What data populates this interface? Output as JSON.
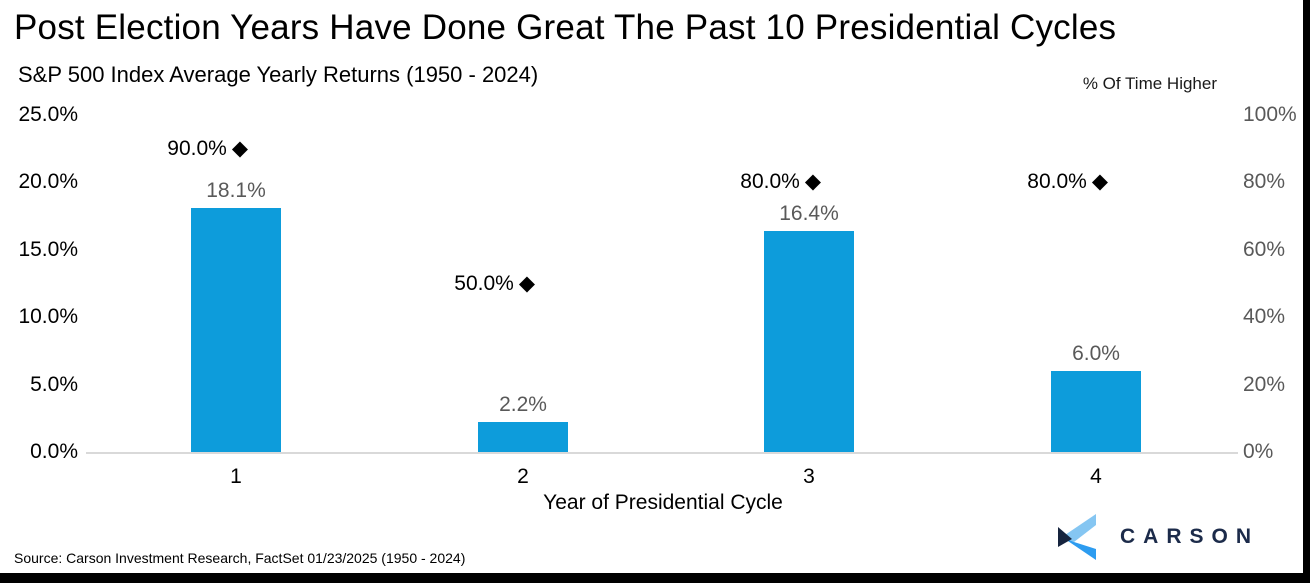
{
  "chart_data": {
    "type": "bar",
    "title": "Post Election Years Have Done Great The Past 10 Presidential Cycles",
    "subtitle": "S&P 500 Index Average Yearly Returns (1950 - 2024)",
    "xlabel": "Year of Presidential Cycle",
    "categories": [
      "1",
      "2",
      "3",
      "4"
    ],
    "series": [
      {
        "name": "S&P 500 Index Average Yearly Returns",
        "type": "bar",
        "axis": "left",
        "color": "#0d9cdb",
        "values": [
          18.1,
          2.2,
          16.4,
          6.0
        ],
        "labels": [
          "18.1%",
          "2.2%",
          "16.4%",
          "6.0%"
        ]
      },
      {
        "name": "% Of Time Higher",
        "type": "scatter-diamond",
        "axis": "right",
        "color": "#000000",
        "marker": "diamond-icon",
        "values": [
          90.0,
          50.0,
          80.0,
          80.0
        ],
        "labels": [
          "90.0%",
          "50.0%",
          "80.0%",
          "80.0%"
        ]
      }
    ],
    "left_axis": {
      "min": 0,
      "max": 25,
      "ticks": [
        "25.0%",
        "20.0%",
        "15.0%",
        "10.0%",
        "5.0%",
        "0.0%"
      ]
    },
    "right_axis": {
      "title": "% Of Time Higher",
      "min": 0,
      "max": 100,
      "ticks": [
        "100%",
        "80%",
        "60%",
        "40%",
        "20%",
        "0%"
      ]
    },
    "grid": "baseline-only",
    "legend_position": "none"
  },
  "footer": {
    "source": "Source: Carson Investment Research, FactSet 01/23/2025 (1950 - 2024)",
    "logo_text": "CARSON",
    "logo_colors": {
      "light_blue": "#85c6f2",
      "bright_blue": "#2d9cf0",
      "dark_navy": "#16243e",
      "text_navy": "#1c2b4a"
    }
  },
  "icons": {
    "diamond_marker": "◆"
  }
}
